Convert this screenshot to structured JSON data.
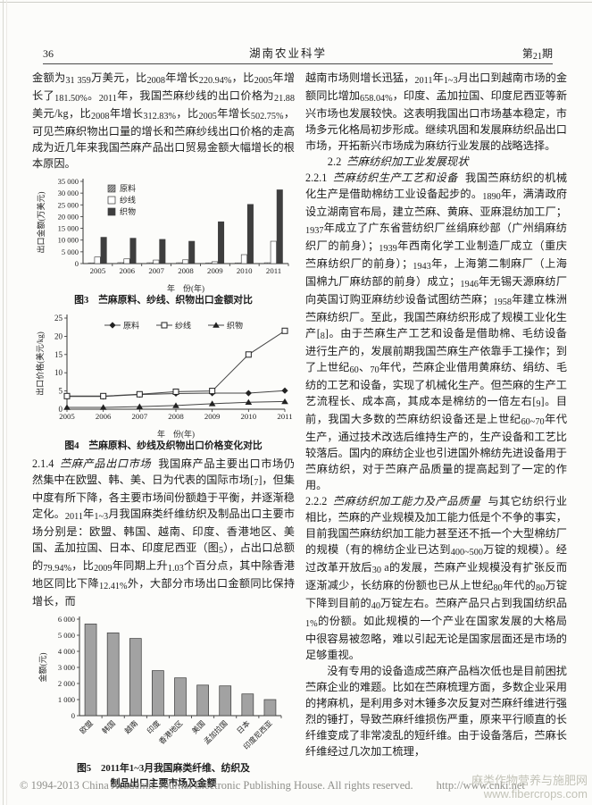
{
  "header": {
    "page_number": "36",
    "journal_name": "湖南农业科学",
    "issue": "第21期"
  },
  "left_column": {
    "para_top": "金额为31 359万美元，比2008年增长220.94%，比2005年增长了181.50%。2011年，我国苎麻纱线的出口价格为21.88美元/kg，比2008年增长312.83%，比2005年增长502.75%，可见苎麻织物出口量的增长和苎麻纱线出口价格的走高成为近几年来我国苎麻产品出口贸易金额大幅增长的根本原因。",
    "section_214_num": "2.1.4",
    "section_214_title": "苎麻产品出口市场",
    "para_214": "我国麻产品主要出口市场仍然集中在欧盟、韩、美、日为代表的国际市场[7]，但集中度有所下降，各主要市场间份额趋于平衡，并逐渐稳定化。2011年1~3月我国麻类纤维纺织及制品出口主要市场分别是：欧盟、韩国、越南、印度、香港地区、美国、孟加拉国、日本、印度尼西亚（图5），占出口总额的79.94%，比2009年同期上升1.03个百分点，其中除香港地区同比下降12.41%外，大部分市场出口金额同比保持增长，而"
  },
  "right_column": {
    "para_top": "越南市场则增长迅猛，2011年1~3月出口到越南市场的金额同比增加658.04%，印度、孟加拉国、印度尼西亚等新兴市场也发展较快。这表明我国出口市场基本稳定，市场多元化格局初步形成。继续巩固和发展麻纺织品出口市场，开拓新兴市场成为麻纺行业发展的战略选择。",
    "heading_22_num": "2.2",
    "heading_22_title": "苎麻纺织加工业发展现状",
    "section_221_num": "2.2.1",
    "section_221_title": "苎麻纺织生产工艺和设备",
    "para_221": "我国苎麻纺织的机械化生产是借助棉纺工业设备起步的。1890年，满清政府设立湖南官布局，建立苎麻、黄麻、亚麻混纺加工厂；1937年成立了广东省营纺织厂丝绢麻纱部（广州绢麻纺织厂的前身）；1939年西南化学工业制造厂成立（重庆苎麻纺织厂的前身）；1943年，上海第二制麻厂（上海国棉九厂麻纺部的前身）成立；1946年无锡天源麻纺厂向英国订购亚麻纺纱设备试图纺苎麻；1958年建立株洲苎麻纺织厂。至此，我国苎麻纺织形成了规模工业化生产[8]。由于苎麻生产工艺和设备是借助棉、毛纺设备进行生产的，发展前期我国苎麻生产依靠手工操作；到了上世纪60、70年代，苎麻企业借用黄麻纺、绢纺、毛纺的工艺和设备，实现了机械化生产。但苎麻的生产工艺流程长、成本高，其成本是棉纺的一倍左右[9]。目前，我国大多数的苎麻纺织设备还是上世纪60~70年代生产，通过技术改选后维持生产的，生产设备和工艺比较落后。国内的麻纺企业也引进国外棉纺先进设备用于苎麻纺织，对于苎麻产品质量的提高起到了一定的作用。",
    "section_222_num": "2.2.2",
    "section_222_title": "苎麻纺织加工能力及产品质量",
    "para_222": "与其它纺织行业相比，苎麻的产业规模及加工能力低是个不争的事实，目前我国苎麻纺织加工能力甚至还不抵一个大型棉纺厂的规模（有的棉纺企业已达到400~500万锭的规模）。经过改革开放后30 a的发展，苎麻产业规模没有扩张反而逐渐减少，长纺麻的份额也已从上世纪80年代的80万锭下降到目前的40万锭左右。苎麻产品只占到我国纺织品1%的份额。如此规模的一个产业在国家发展的大格局中很容易被忽略，难以引起无论是国家层面还是市场的足够重视。",
    "para_last": "没有专用的设备造成苎麻产品档次低也是目前困扰苎麻企业的难题。比如在苎麻梳理方面，多数企业采用的拷麻机，是利用多对木锤多次反复对苎麻纤维进行强烈的锤打，导致苎麻纤维损伤严重，原来平行顺直的长纤维变成了非常凌乱的短纤维。由于设备落后，苎麻长纤维经过几次加工梳理，"
  },
  "footer": {
    "copyright": "© 1994-2013 China Academic Journal Electronic Publishing House. All rights reserved.",
    "url": "http://www.cnki.net"
  },
  "watermark": {
    "line1": "麻类作物营养与施肥网",
    "line2": "www.fibercrops.com"
  },
  "chart_data": [
    {
      "id": "fig3",
      "type": "bar",
      "title": "图3　苎麻原料、纱线、织物出口金额对比",
      "xlabel": "年　份(年)",
      "ylabel": "出口金额(万美元)",
      "categories": [
        "2005",
        "2006",
        "2007",
        "2008",
        "2009",
        "2010",
        "2011"
      ],
      "series": [
        {
          "name": "原料",
          "values": [
            300,
            400,
            350,
            350,
            300,
            300,
            350
          ]
        },
        {
          "name": "纱线",
          "values": [
            2800,
            2000,
            1500,
            1600,
            800,
            3800,
            9500
          ]
        },
        {
          "name": "织物",
          "values": [
            11200,
            10800,
            10300,
            9500,
            17800,
            25200,
            31400
          ]
        }
      ],
      "ylim": [
        0,
        35000
      ],
      "ytick_step": 5000,
      "legend_position": "upper-left-inside",
      "grid": false,
      "colors": {
        "原料": "#b5b5b5-hatched",
        "纱线": "#ffffff",
        "织物": "#3e3e3e"
      }
    },
    {
      "id": "fig4",
      "type": "line",
      "title": "图4　苎麻原料、纱线及织物出口价格变化对比",
      "xlabel": "年　份(年)",
      "ylabel": "出口价格(美元/kg)",
      "x": [
        "2005",
        "2006",
        "2007",
        "2008",
        "2009",
        "2010",
        "2011"
      ],
      "series": [
        {
          "name": "原料",
          "marker": "diamond",
          "values": [
            3.5,
            3.5,
            4.0,
            4.3,
            4.4,
            4.4,
            5.1
          ]
        },
        {
          "name": "纱线",
          "marker": "square-open",
          "values": [
            3.6,
            3.6,
            4.1,
            4.8,
            5.0,
            15.0,
            21.5
          ]
        },
        {
          "name": "织物",
          "marker": "triangle",
          "values": [
            0.5,
            0.5,
            0.7,
            1.0,
            1.5,
            1.9,
            2.1
          ]
        }
      ],
      "ylim": [
        0,
        25
      ],
      "ytick_step": 5,
      "legend_position": "top-inside",
      "grid": false,
      "line_color": "#444444"
    },
    {
      "id": "fig5",
      "type": "bar",
      "title": "图5　2011年1~3月我国麻类纤维、纺织及制品出口主要市场及金额",
      "title_line1": "图5　2011年1~3月我国麻类纤维、纺织及",
      "title_line2": "制品出口主要市场及金额",
      "xlabel": "",
      "ylabel": "金额(元)",
      "categories": [
        "欧盟",
        "韩国",
        "越南",
        "印度",
        "香港地区",
        "美国",
        "孟加拉国",
        "日本",
        "印度尼西亚"
      ],
      "values": [
        5700,
        5150,
        4800,
        2800,
        2350,
        1900,
        1850,
        1350,
        1000
      ],
      "ylim": [
        0,
        6000
      ],
      "ytick_step": 1000,
      "grid": false,
      "bar_color": "#a2a2a2"
    }
  ]
}
